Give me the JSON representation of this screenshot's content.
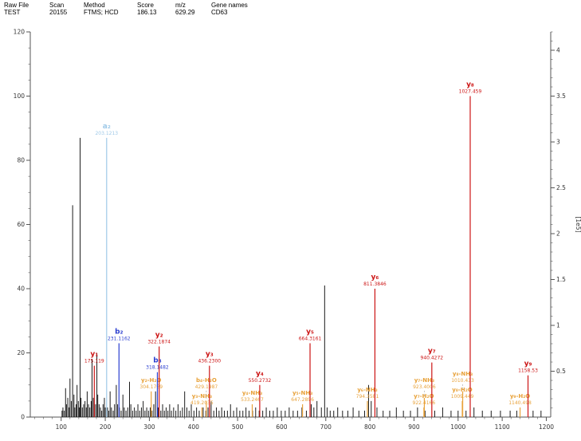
{
  "header": {
    "fields": [
      {
        "label": "Raw File",
        "value": "TEST"
      },
      {
        "label": "Scan",
        "value": "20155"
      },
      {
        "label": "Method",
        "value": "FTMS; HCD"
      },
      {
        "label": "Score",
        "value": "186.13"
      },
      {
        "label": "m/z",
        "value": "629.29"
      },
      {
        "label": "Gene names",
        "value": "CD63"
      }
    ]
  },
  "colors": {
    "a": "#9fc9e8",
    "b": "#2b3fd0",
    "y": "#cc1414",
    "loss": "#e8a23a",
    "peak": "#1b1b1b",
    "axis": "#555555",
    "connector": "#aaaaaa"
  },
  "chart_data": {
    "type": "bar",
    "xlim": [
      30,
      1210
    ],
    "ylim_left": [
      0,
      120
    ],
    "ylim_right": [
      0,
      4.2
    ],
    "right_axis_label": "[1e5]",
    "x_ticks": [
      100,
      200,
      300,
      400,
      500,
      600,
      700,
      800,
      900,
      1000,
      1100,
      1200
    ],
    "y_ticks_left": [
      0,
      20,
      40,
      60,
      80,
      100,
      120
    ],
    "y_ticks_right": [
      0.5,
      1,
      1.5,
      2,
      2.5,
      3,
      3.5,
      4
    ],
    "annotated_peaks": [
      {
        "series": "y",
        "label": "y₁",
        "value": "175.119",
        "mz": 175.119,
        "intensity": 16
      },
      {
        "series": "a",
        "label": "a₂",
        "value": "203.1213",
        "mz": 203.1213,
        "intensity": 87
      },
      {
        "series": "b",
        "label": "b₂",
        "value": "231.1162",
        "mz": 231.1162,
        "intensity": 23
      },
      {
        "series": "loss",
        "label": "y₂-H₂O",
        "value": "304.1769",
        "mz": 304.1769,
        "intensity": 8
      },
      {
        "series": "b",
        "label": "b₃",
        "value": "318.1482",
        "mz": 318.1482,
        "intensity": 14
      },
      {
        "series": "y",
        "label": "y₂",
        "value": "322.1874",
        "mz": 322.1874,
        "intensity": 22
      },
      {
        "series": "loss",
        "label": "y₃-NH₃",
        "value": "419.2035",
        "mz": 419.2035,
        "intensity": 3
      },
      {
        "series": "loss",
        "label": "b₄-H₂O",
        "value": "429.1987",
        "mz": 429.1987,
        "intensity": 5
      },
      {
        "series": "y",
        "label": "y₃",
        "value": "436.2300",
        "mz": 436.23,
        "intensity": 16
      },
      {
        "series": "loss",
        "label": "y₄-NH₃",
        "value": "533.2467",
        "mz": 533.2467,
        "intensity": 4
      },
      {
        "series": "y",
        "label": "y₄",
        "value": "550.2732",
        "mz": 550.2732,
        "intensity": 10
      },
      {
        "series": "loss",
        "label": "y₅-NH₃",
        "value": "647.2896",
        "mz": 647.2896,
        "intensity": 4
      },
      {
        "series": "y",
        "label": "y₅",
        "value": "664.3161",
        "mz": 664.3161,
        "intensity": 23
      },
      {
        "series": "loss",
        "label": "y₆-NH₃",
        "value": "794.3581",
        "mz": 794.3581,
        "intensity": 5
      },
      {
        "series": "y",
        "label": "y₆",
        "value": "811.3846",
        "mz": 811.3846,
        "intensity": 40
      },
      {
        "series": "loss",
        "label": "y₇-H₂O",
        "value": "922.4166",
        "mz": 922.4166,
        "intensity": 3
      },
      {
        "series": "loss",
        "label": "y₇-NH₃",
        "value": "923.4006",
        "mz": 923.4006,
        "intensity": 6
      },
      {
        "series": "y",
        "label": "y₇",
        "value": "940.4272",
        "mz": 940.4272,
        "intensity": 17
      },
      {
        "series": "loss",
        "label": "y₈-H₂O",
        "value": "1009.449",
        "mz": 1009.449,
        "intensity": 5
      },
      {
        "series": "loss",
        "label": "y₈-NH₃",
        "value": "1010.433",
        "mz": 1010.433,
        "intensity": 8
      },
      {
        "series": "y",
        "label": "y₈",
        "value": "1027.459",
        "mz": 1027.459,
        "intensity": 100
      },
      {
        "series": "loss",
        "label": "y₉-H₂O",
        "value": "1140.498",
        "mz": 1140.498,
        "intensity": 3
      },
      {
        "series": "y",
        "label": "y₉",
        "value": "1158.53",
        "mz": 1158.53,
        "intensity": 13
      }
    ],
    "background_peaks": [
      [
        102,
        2
      ],
      [
        104,
        3
      ],
      [
        107,
        2
      ],
      [
        110,
        9
      ],
      [
        112,
        4
      ],
      [
        115,
        6
      ],
      [
        118,
        3
      ],
      [
        120,
        12
      ],
      [
        123,
        5
      ],
      [
        126,
        66
      ],
      [
        129,
        7
      ],
      [
        131,
        3
      ],
      [
        134,
        4
      ],
      [
        136,
        10
      ],
      [
        139,
        5
      ],
      [
        141,
        3
      ],
      [
        143,
        87
      ],
      [
        145,
        6
      ],
      [
        148,
        3
      ],
      [
        151,
        4
      ],
      [
        154,
        5
      ],
      [
        157,
        3
      ],
      [
        159,
        8
      ],
      [
        162,
        4
      ],
      [
        165,
        3
      ],
      [
        168,
        5
      ],
      [
        170,
        18
      ],
      [
        173,
        6
      ],
      [
        178,
        4
      ],
      [
        181,
        20
      ],
      [
        183,
        7
      ],
      [
        186,
        4
      ],
      [
        189,
        3
      ],
      [
        192,
        2
      ],
      [
        195,
        4
      ],
      [
        198,
        6
      ],
      [
        200,
        3
      ],
      [
        205,
        3
      ],
      [
        208,
        2
      ],
      [
        211,
        8
      ],
      [
        214,
        3
      ],
      [
        218,
        2
      ],
      [
        221,
        4
      ],
      [
        225,
        10
      ],
      [
        228,
        4
      ],
      [
        232,
        3
      ],
      [
        236,
        2
      ],
      [
        240,
        7
      ],
      [
        243,
        3
      ],
      [
        247,
        2
      ],
      [
        251,
        3
      ],
      [
        255,
        11
      ],
      [
        258,
        4
      ],
      [
        262,
        2
      ],
      [
        266,
        3
      ],
      [
        270,
        2
      ],
      [
        274,
        4
      ],
      [
        278,
        2
      ],
      [
        282,
        3
      ],
      [
        286,
        5
      ],
      [
        290,
        2
      ],
      [
        294,
        3
      ],
      [
        298,
        2
      ],
      [
        302,
        3
      ],
      [
        306,
        2
      ],
      [
        310,
        4
      ],
      [
        314,
        8
      ],
      [
        320,
        3
      ],
      [
        326,
        2
      ],
      [
        330,
        4
      ],
      [
        334,
        2
      ],
      [
        338,
        3
      ],
      [
        342,
        2
      ],
      [
        346,
        4
      ],
      [
        350,
        2
      ],
      [
        355,
        3
      ],
      [
        360,
        2
      ],
      [
        365,
        4
      ],
      [
        370,
        2
      ],
      [
        375,
        3
      ],
      [
        380,
        8
      ],
      [
        385,
        3
      ],
      [
        390,
        2
      ],
      [
        395,
        4
      ],
      [
        401,
        2
      ],
      [
        407,
        3
      ],
      [
        413,
        2
      ],
      [
        422,
        3
      ],
      [
        428,
        2
      ],
      [
        433,
        3
      ],
      [
        440,
        5
      ],
      [
        446,
        2
      ],
      [
        452,
        3
      ],
      [
        458,
        2
      ],
      [
        464,
        3
      ],
      [
        470,
        2
      ],
      [
        477,
        2
      ],
      [
        484,
        4
      ],
      [
        491,
        2
      ],
      [
        498,
        3
      ],
      [
        505,
        2
      ],
      [
        512,
        2
      ],
      [
        519,
        3
      ],
      [
        526,
        2
      ],
      [
        534,
        2
      ],
      [
        541,
        3
      ],
      [
        549,
        2
      ],
      [
        557,
        2
      ],
      [
        565,
        3
      ],
      [
        573,
        2
      ],
      [
        581,
        2
      ],
      [
        590,
        3
      ],
      [
        599,
        2
      ],
      [
        608,
        2
      ],
      [
        617,
        3
      ],
      [
        626,
        2
      ],
      [
        636,
        2
      ],
      [
        646,
        3
      ],
      [
        656,
        2
      ],
      [
        667,
        4
      ],
      [
        673,
        3
      ],
      [
        680,
        5
      ],
      [
        690,
        3
      ],
      [
        697.4,
        41
      ],
      [
        703,
        3
      ],
      [
        710,
        2
      ],
      [
        718,
        2
      ],
      [
        727,
        3
      ],
      [
        738,
        2
      ],
      [
        750,
        2
      ],
      [
        762,
        3
      ],
      [
        775,
        2
      ],
      [
        788,
        2
      ],
      [
        797,
        10
      ],
      [
        803,
        5
      ],
      [
        816,
        3
      ],
      [
        830,
        2
      ],
      [
        845,
        2
      ],
      [
        860,
        3
      ],
      [
        876,
        2
      ],
      [
        892,
        2
      ],
      [
        908,
        3
      ],
      [
        925,
        2
      ],
      [
        947,
        2
      ],
      [
        965,
        3
      ],
      [
        984,
        2
      ],
      [
        1000,
        2
      ],
      [
        1018,
        2
      ],
      [
        1036,
        3
      ],
      [
        1055,
        2
      ],
      [
        1075,
        2
      ],
      [
        1096,
        2
      ],
      [
        1118,
        2
      ],
      [
        1133,
        2
      ],
      [
        1170,
        2
      ],
      [
        1188,
        2
      ]
    ]
  }
}
